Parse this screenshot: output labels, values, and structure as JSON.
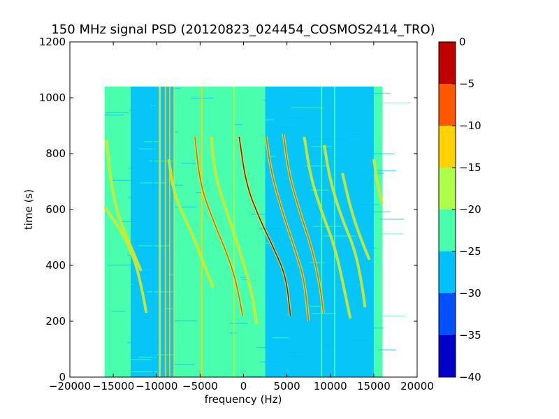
{
  "chart_data": {
    "type": "heatmap",
    "title": "150 MHz signal PSD (20120823_024454_COSMOS2414_TRO)",
    "xlabel": "frequency (Hz)",
    "ylabel": "time (s)",
    "xlim": [
      -20000,
      20000
    ],
    "ylim": [
      0,
      1200
    ],
    "xticks": [
      -20000,
      -15000,
      -10000,
      -5000,
      0,
      5000,
      10000,
      15000,
      20000
    ],
    "xtick_labels": [
      "−20000",
      "−15000",
      "−10000",
      "−5000",
      "0",
      "5000",
      "10000",
      "15000",
      "20000"
    ],
    "yticks": [
      0,
      200,
      400,
      600,
      800,
      1000,
      1200
    ],
    "ytick_labels": [
      "0",
      "200",
      "400",
      "600",
      "800",
      "1000",
      "1200"
    ],
    "data_extent": {
      "x": [
        -16000,
        16000
      ],
      "y": [
        0,
        1040
      ]
    },
    "background_level": -23,
    "low_noise_bands": [
      {
        "x_from": -13000,
        "x_to": -8000,
        "level": -26
      },
      {
        "x_from": 2500,
        "x_to": 14000,
        "level": -27
      },
      {
        "x_from": 14000,
        "x_to": 15000,
        "level": -26
      }
    ],
    "vertical_lines": [
      {
        "x": -10400,
        "level": -28
      },
      {
        "x": -9700,
        "level": -15
      },
      {
        "x": -9600,
        "level": -13
      },
      {
        "x": -9000,
        "level": -14
      },
      {
        "x": -8500,
        "level": -13
      },
      {
        "x": -8000,
        "level": -15
      },
      {
        "x": -4800,
        "level": -13
      },
      {
        "x": -1100,
        "level": -16
      },
      {
        "x": 9000,
        "level": -24
      },
      {
        "x": 10500,
        "level": -24
      }
    ],
    "traces": [
      {
        "level": -15,
        "points": [
          [
            -16000,
            610
          ],
          [
            -14000,
            520
          ],
          [
            -12500,
            420
          ],
          [
            -11600,
            300
          ],
          [
            -11200,
            230
          ]
        ]
      },
      {
        "level": -15,
        "points": [
          [
            -15800,
            850
          ],
          [
            -15300,
            700
          ],
          [
            -14400,
            570
          ],
          [
            -13000,
            470
          ],
          [
            -11800,
            380
          ]
        ]
      },
      {
        "level": -12,
        "points": [
          [
            -8600,
            780
          ],
          [
            -8000,
            650
          ],
          [
            -6000,
            520
          ],
          [
            -4500,
            400
          ],
          [
            -3500,
            320
          ]
        ]
      },
      {
        "level": -8,
        "points": [
          [
            -5600,
            860
          ],
          [
            -5000,
            690
          ],
          [
            -3500,
            560
          ],
          [
            -2000,
            450
          ],
          [
            -900,
            350
          ],
          [
            -100,
            220
          ]
        ]
      },
      {
        "level": -12,
        "points": [
          [
            -3700,
            860
          ],
          [
            -3300,
            720
          ],
          [
            -1700,
            570
          ],
          [
            -200,
            430
          ],
          [
            1000,
            300
          ],
          [
            1500,
            190
          ]
        ]
      },
      {
        "level": -4,
        "points": [
          [
            -500,
            860
          ],
          [
            300,
            690
          ],
          [
            1800,
            570
          ],
          [
            3500,
            460
          ],
          [
            4900,
            360
          ],
          [
            5400,
            220
          ]
        ]
      },
      {
        "level": -9,
        "points": [
          [
            2600,
            860
          ],
          [
            3200,
            730
          ],
          [
            4500,
            590
          ],
          [
            5900,
            460
          ],
          [
            7000,
            350
          ],
          [
            7500,
            200
          ]
        ]
      },
      {
        "level": -9,
        "points": [
          [
            4600,
            870
          ],
          [
            5200,
            730
          ],
          [
            6500,
            590
          ],
          [
            7900,
            460
          ],
          [
            8800,
            330
          ],
          [
            9200,
            230
          ]
        ]
      },
      {
        "level": -12,
        "points": [
          [
            7000,
            860
          ],
          [
            7700,
            720
          ],
          [
            9000,
            590
          ],
          [
            10500,
            470
          ],
          [
            11500,
            330
          ],
          [
            12300,
            210
          ]
        ]
      },
      {
        "level": -14,
        "points": [
          [
            9300,
            830
          ],
          [
            10000,
            700
          ],
          [
            11300,
            570
          ],
          [
            12800,
            460
          ],
          [
            13600,
            340
          ],
          [
            14000,
            250
          ]
        ]
      },
      {
        "level": -14,
        "points": [
          [
            11400,
            730
          ],
          [
            12200,
            620
          ],
          [
            13200,
            520
          ],
          [
            14500,
            420
          ]
        ]
      },
      {
        "level": -15,
        "points": [
          [
            15000,
            780
          ],
          [
            15500,
            680
          ],
          [
            16000,
            620
          ]
        ]
      }
    ],
    "colorbar": {
      "range": [
        -40,
        0
      ],
      "ticks": [
        0,
        -5,
        -10,
        -15,
        -20,
        -25,
        -30,
        -35,
        -40
      ],
      "tick_labels": [
        "0",
        "−5",
        "−10",
        "−15",
        "−20",
        "−25",
        "−30",
        "−35",
        "−40"
      ],
      "levels": [
        {
          "from": -40,
          "to": -35,
          "color": "#0000c8"
        },
        {
          "from": -35,
          "to": -30,
          "color": "#0050ff"
        },
        {
          "from": -30,
          "to": -25,
          "color": "#00c0ff"
        },
        {
          "from": -25,
          "to": -20,
          "color": "#49ffad"
        },
        {
          "from": -20,
          "to": -15,
          "color": "#adff49"
        },
        {
          "from": -15,
          "to": -10,
          "color": "#ffd200"
        },
        {
          "from": -10,
          "to": -5,
          "color": "#ff5800"
        },
        {
          "from": -5,
          "to": 0,
          "color": "#c00000"
        }
      ]
    }
  }
}
